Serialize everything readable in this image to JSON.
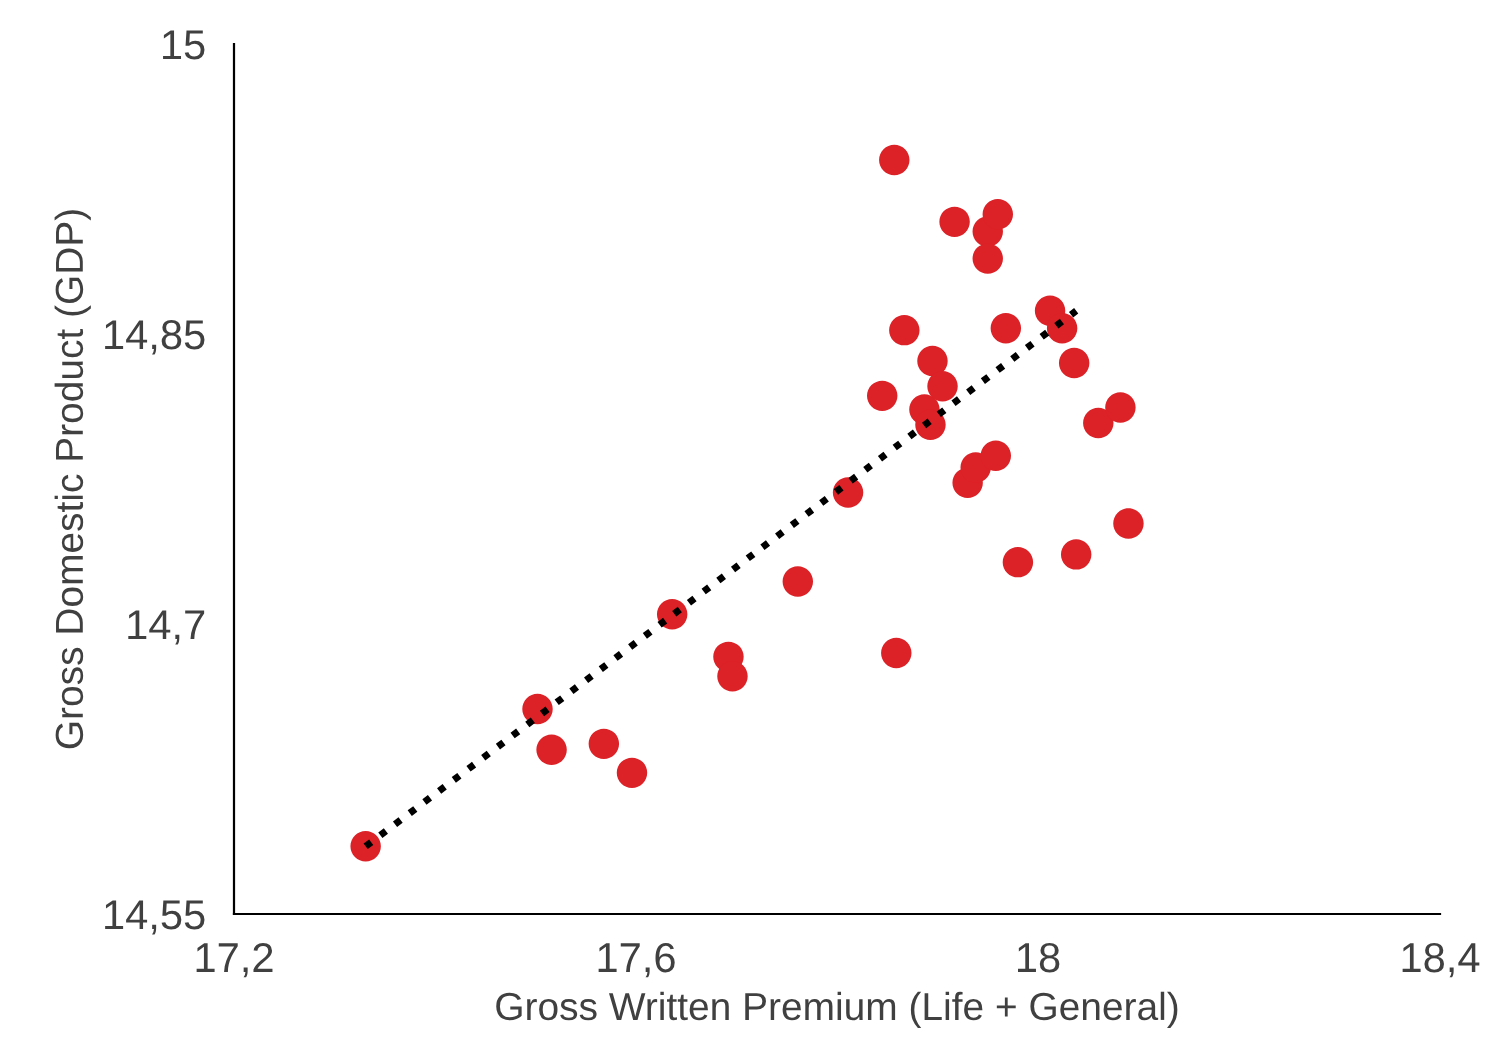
{
  "chart_data": {
    "type": "scatter",
    "xlabel": "Gross Written Premium (Life + General)",
    "ylabel": "Gross Domestic Product (GDP)",
    "xlim": [
      17.2,
      18.4
    ],
    "xticks": [
      {
        "value": 17.2,
        "label": "17,2"
      },
      {
        "value": 17.6,
        "label": "17,6"
      },
      {
        "value": 18,
        "label": "18"
      },
      {
        "value": 18.4,
        "label": "18,4"
      }
    ],
    "ylim": [
      14.55,
      15
    ],
    "yticks": [
      {
        "value": 14.55,
        "label": "14,55"
      },
      {
        "value": 14.7,
        "label": "14,7"
      },
      {
        "value": 14.85,
        "label": "14,85"
      },
      {
        "value": 15,
        "label": "15"
      }
    ],
    "grid": false,
    "legend": false,
    "series": [
      {
        "color": "#dc2127",
        "marker": "circle",
        "x": [
          17.331,
          17.502,
          17.516,
          17.568,
          17.596,
          17.636,
          17.692,
          17.696,
          17.761,
          17.811,
          17.845,
          17.859,
          17.857,
          17.867,
          17.887,
          17.893,
          17.895,
          17.905,
          17.917,
          17.93,
          17.938,
          17.95,
          17.95,
          17.958,
          17.96,
          17.968,
          17.98,
          18.012,
          18.024,
          18.036,
          18.038,
          18.06,
          18.082,
          18.09
        ],
        "values": [
          14.585,
          14.656,
          14.635,
          14.638,
          14.623,
          14.705,
          14.683,
          14.673,
          14.722,
          14.768,
          14.818,
          14.685,
          14.94,
          14.852,
          14.811,
          14.803,
          14.836,
          14.823,
          14.908,
          14.773,
          14.781,
          14.903,
          14.889,
          14.787,
          14.912,
          14.853,
          14.732,
          14.862,
          14.853,
          14.835,
          14.736,
          14.804,
          14.812,
          14.752
        ]
      },
      {
        "type": "line",
        "color": "#000000",
        "line_style": "dotted",
        "marker": "none",
        "x": [
          17.331,
          18.038
        ],
        "values": [
          14.585,
          14.862
        ]
      }
    ]
  }
}
